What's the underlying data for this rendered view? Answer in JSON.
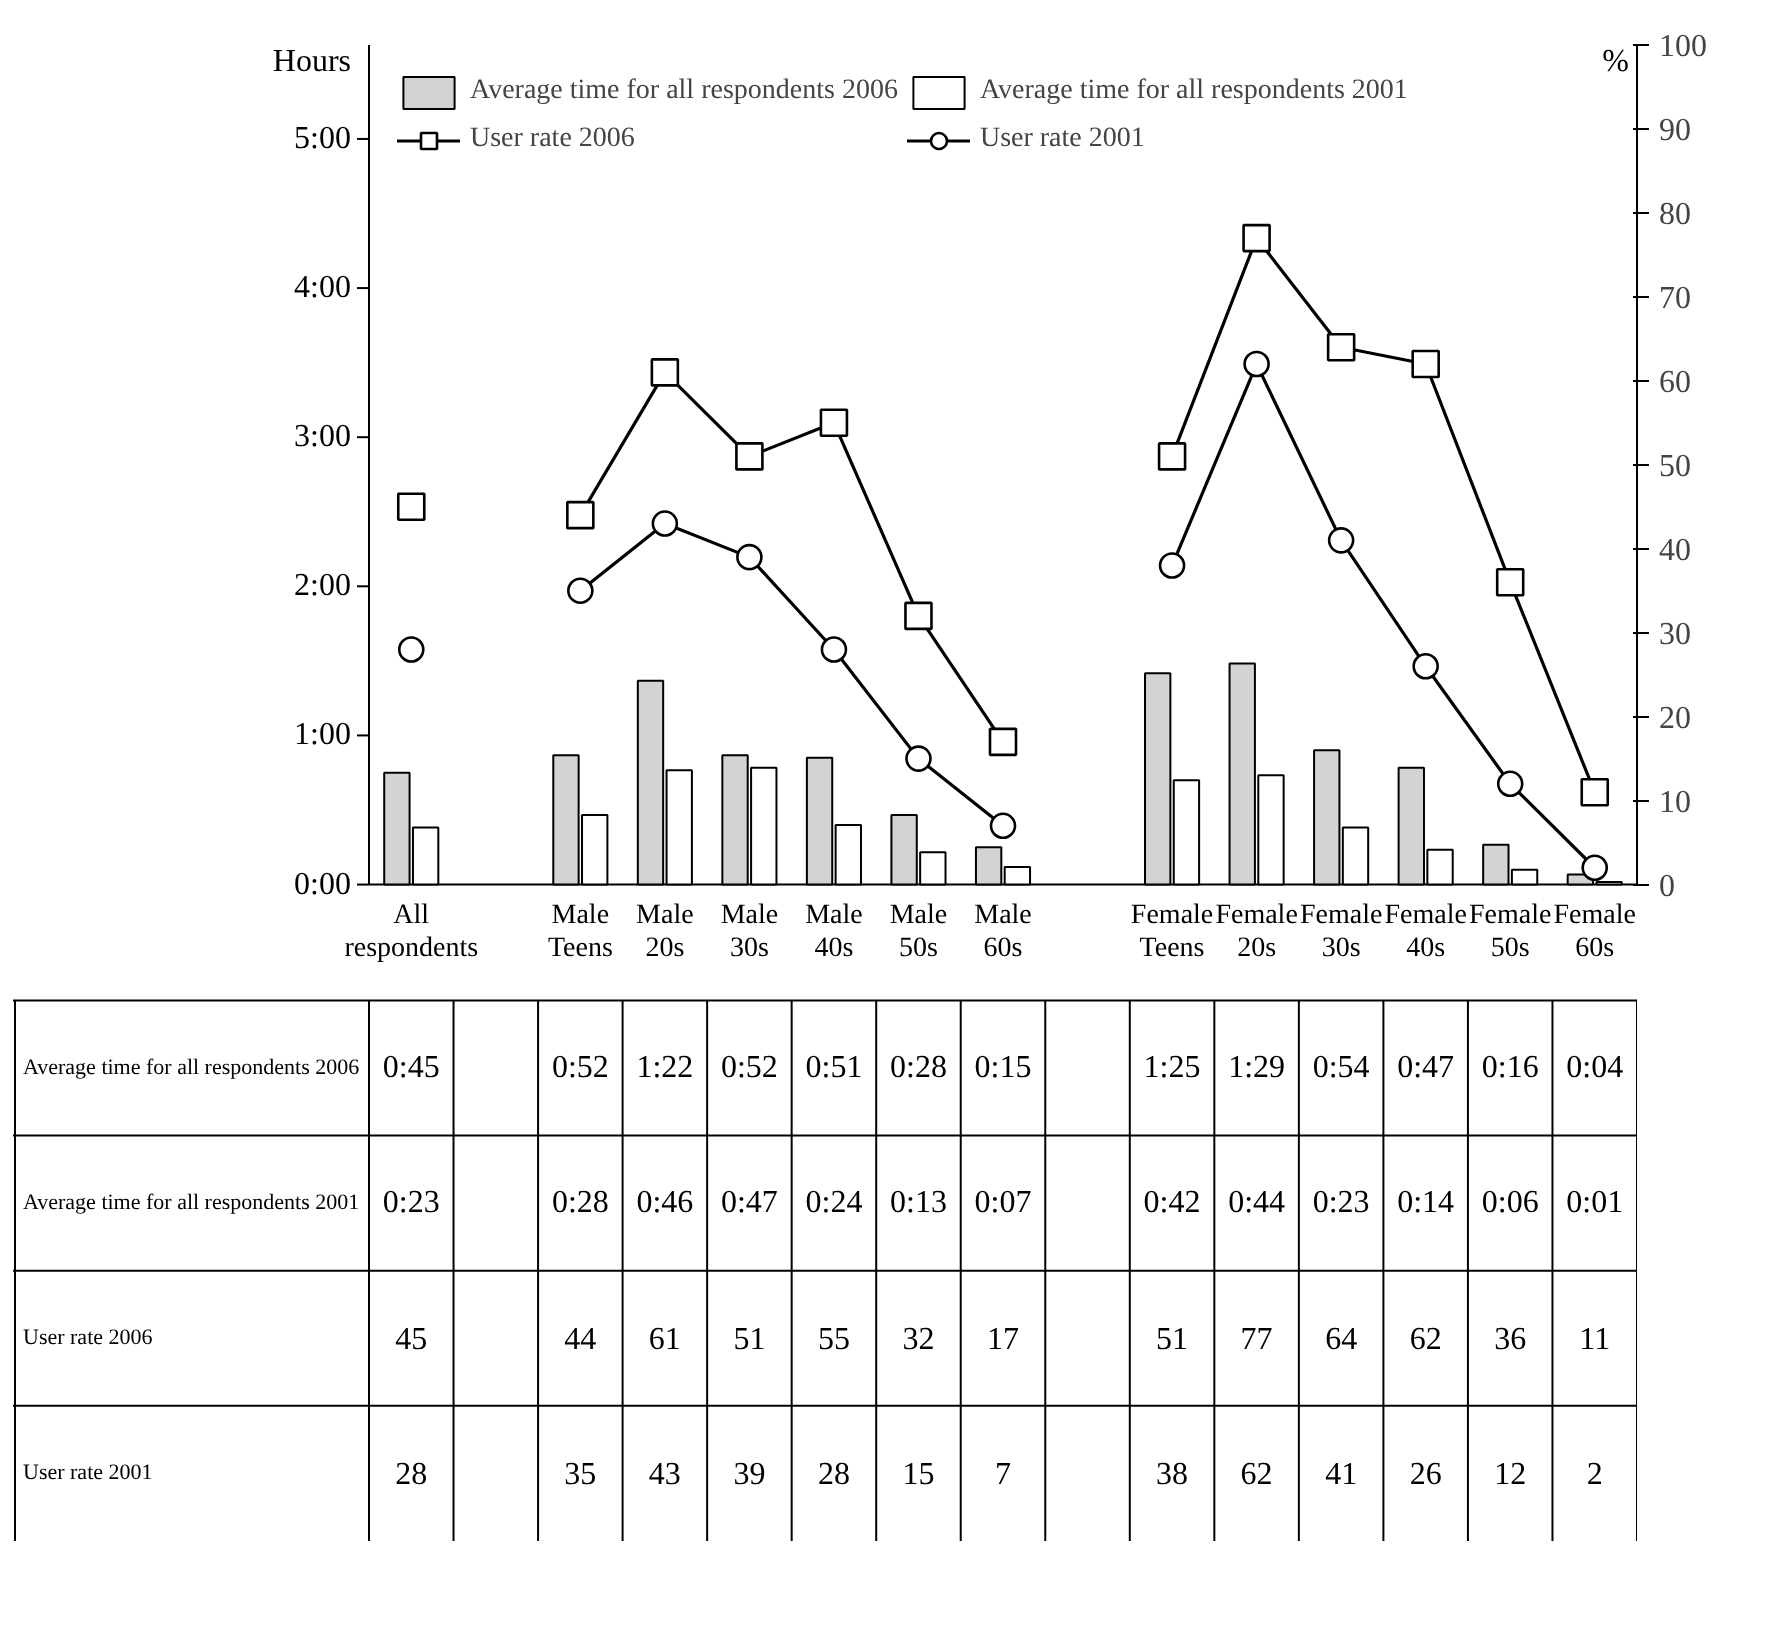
{
  "chart_data": {
    "type": "bar",
    "ylabel": "Hours",
    "y2label": "%",
    "categories": [
      "All respondents",
      null,
      "Male Teens",
      "Male 20s",
      "Male 30s",
      "Male 40s",
      "Male 50s",
      "Male 60s",
      null,
      "Female Teens",
      "Female 20s",
      "Female 30s",
      "Female 40s",
      "Female 50s",
      "Female 60s"
    ],
    "series": [
      {
        "name": "Average time for all respondents 2006",
        "color": "#d2d3d5",
        "values": [
          0.75,
          null,
          0.867,
          1.367,
          0.867,
          0.85,
          0.467,
          0.25,
          null,
          1.417,
          1.483,
          0.9,
          0.783,
          0.267,
          0.067
        ],
        "value_labels": [
          "0:45",
          null,
          "0:52",
          "1:22",
          "0:52",
          "0:51",
          "0:28",
          "0:15",
          null,
          "1:25",
          "1:29",
          "0:54",
          "0:47",
          "0:16",
          "0:04"
        ]
      },
      {
        "name": "Average time for all respondents 2001",
        "color": "#ffffff",
        "values": [
          0.383,
          null,
          0.467,
          0.767,
          0.783,
          0.4,
          0.217,
          0.117,
          null,
          0.7,
          0.733,
          0.383,
          0.233,
          0.1,
          0.017
        ],
        "value_labels": [
          "0:23",
          null,
          "0:28",
          "0:46",
          "0:47",
          "0:24",
          "0:13",
          "0:07",
          null,
          "0:42",
          "0:44",
          "0:23",
          "0:14",
          "0:06",
          "0:01"
        ]
      },
      {
        "name": "User rate 2006",
        "type": "line",
        "axis": "y2",
        "marker": "square",
        "color": "#000000",
        "values": [
          45,
          null,
          44,
          61,
          51,
          55,
          32,
          17,
          null,
          51,
          77,
          64,
          62,
          36,
          11
        ],
        "value_labels": [
          "45",
          null,
          "44",
          "61",
          "51",
          "55",
          "32",
          "17",
          null,
          "51",
          "77",
          "64",
          "62",
          "36",
          "11"
        ]
      },
      {
        "name": "User rate 2001",
        "type": "line",
        "axis": "y2",
        "marker": "circle",
        "color": "#000000",
        "values": [
          28,
          null,
          35,
          43,
          39,
          28,
          15,
          7,
          null,
          38,
          62,
          41,
          26,
          12,
          2
        ],
        "value_labels": [
          "28",
          null,
          "35",
          "43",
          "39",
          "28",
          "15",
          "7",
          null,
          "38",
          "62",
          "41",
          "26",
          "12",
          "2"
        ]
      }
    ],
    "ylim": [
      0,
      5.63
    ],
    "yticks": [
      {
        "value": 0,
        "label": "0:00"
      },
      {
        "value": 1,
        "label": "1:00"
      },
      {
        "value": 2,
        "label": "2:00"
      },
      {
        "value": 3,
        "label": "3:00"
      },
      {
        "value": 4,
        "label": "4:00"
      },
      {
        "value": 5,
        "label": "5:00"
      }
    ],
    "y2lim": [
      0,
      100
    ],
    "y2ticks": [
      0,
      10,
      20,
      30,
      40,
      50,
      60,
      70,
      80,
      90,
      100
    ],
    "grid": false,
    "legend": "top"
  }
}
